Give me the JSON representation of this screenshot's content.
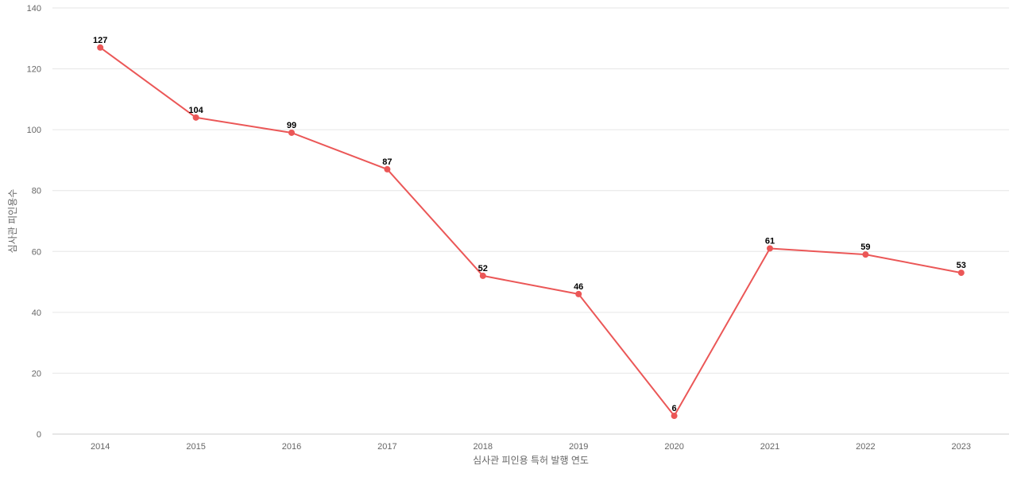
{
  "chart_data": {
    "type": "line",
    "title": "",
    "xlabel": "심사관 피인용 특허 발행 연도",
    "ylabel": "심사관 피인용수",
    "categories": [
      "2014",
      "2015",
      "2016",
      "2017",
      "2018",
      "2019",
      "2020",
      "2021",
      "2022",
      "2023"
    ],
    "series": [
      {
        "values": [
          127,
          104,
          99,
          87,
          52,
          46,
          6,
          61,
          59,
          53
        ],
        "color": "#eb5757"
      }
    ],
    "ylim": [
      0,
      140
    ],
    "yticks": [
      0,
      20,
      40,
      60,
      80,
      100,
      120,
      140
    ],
    "grid": true,
    "data_labels": true,
    "legend": "none"
  }
}
